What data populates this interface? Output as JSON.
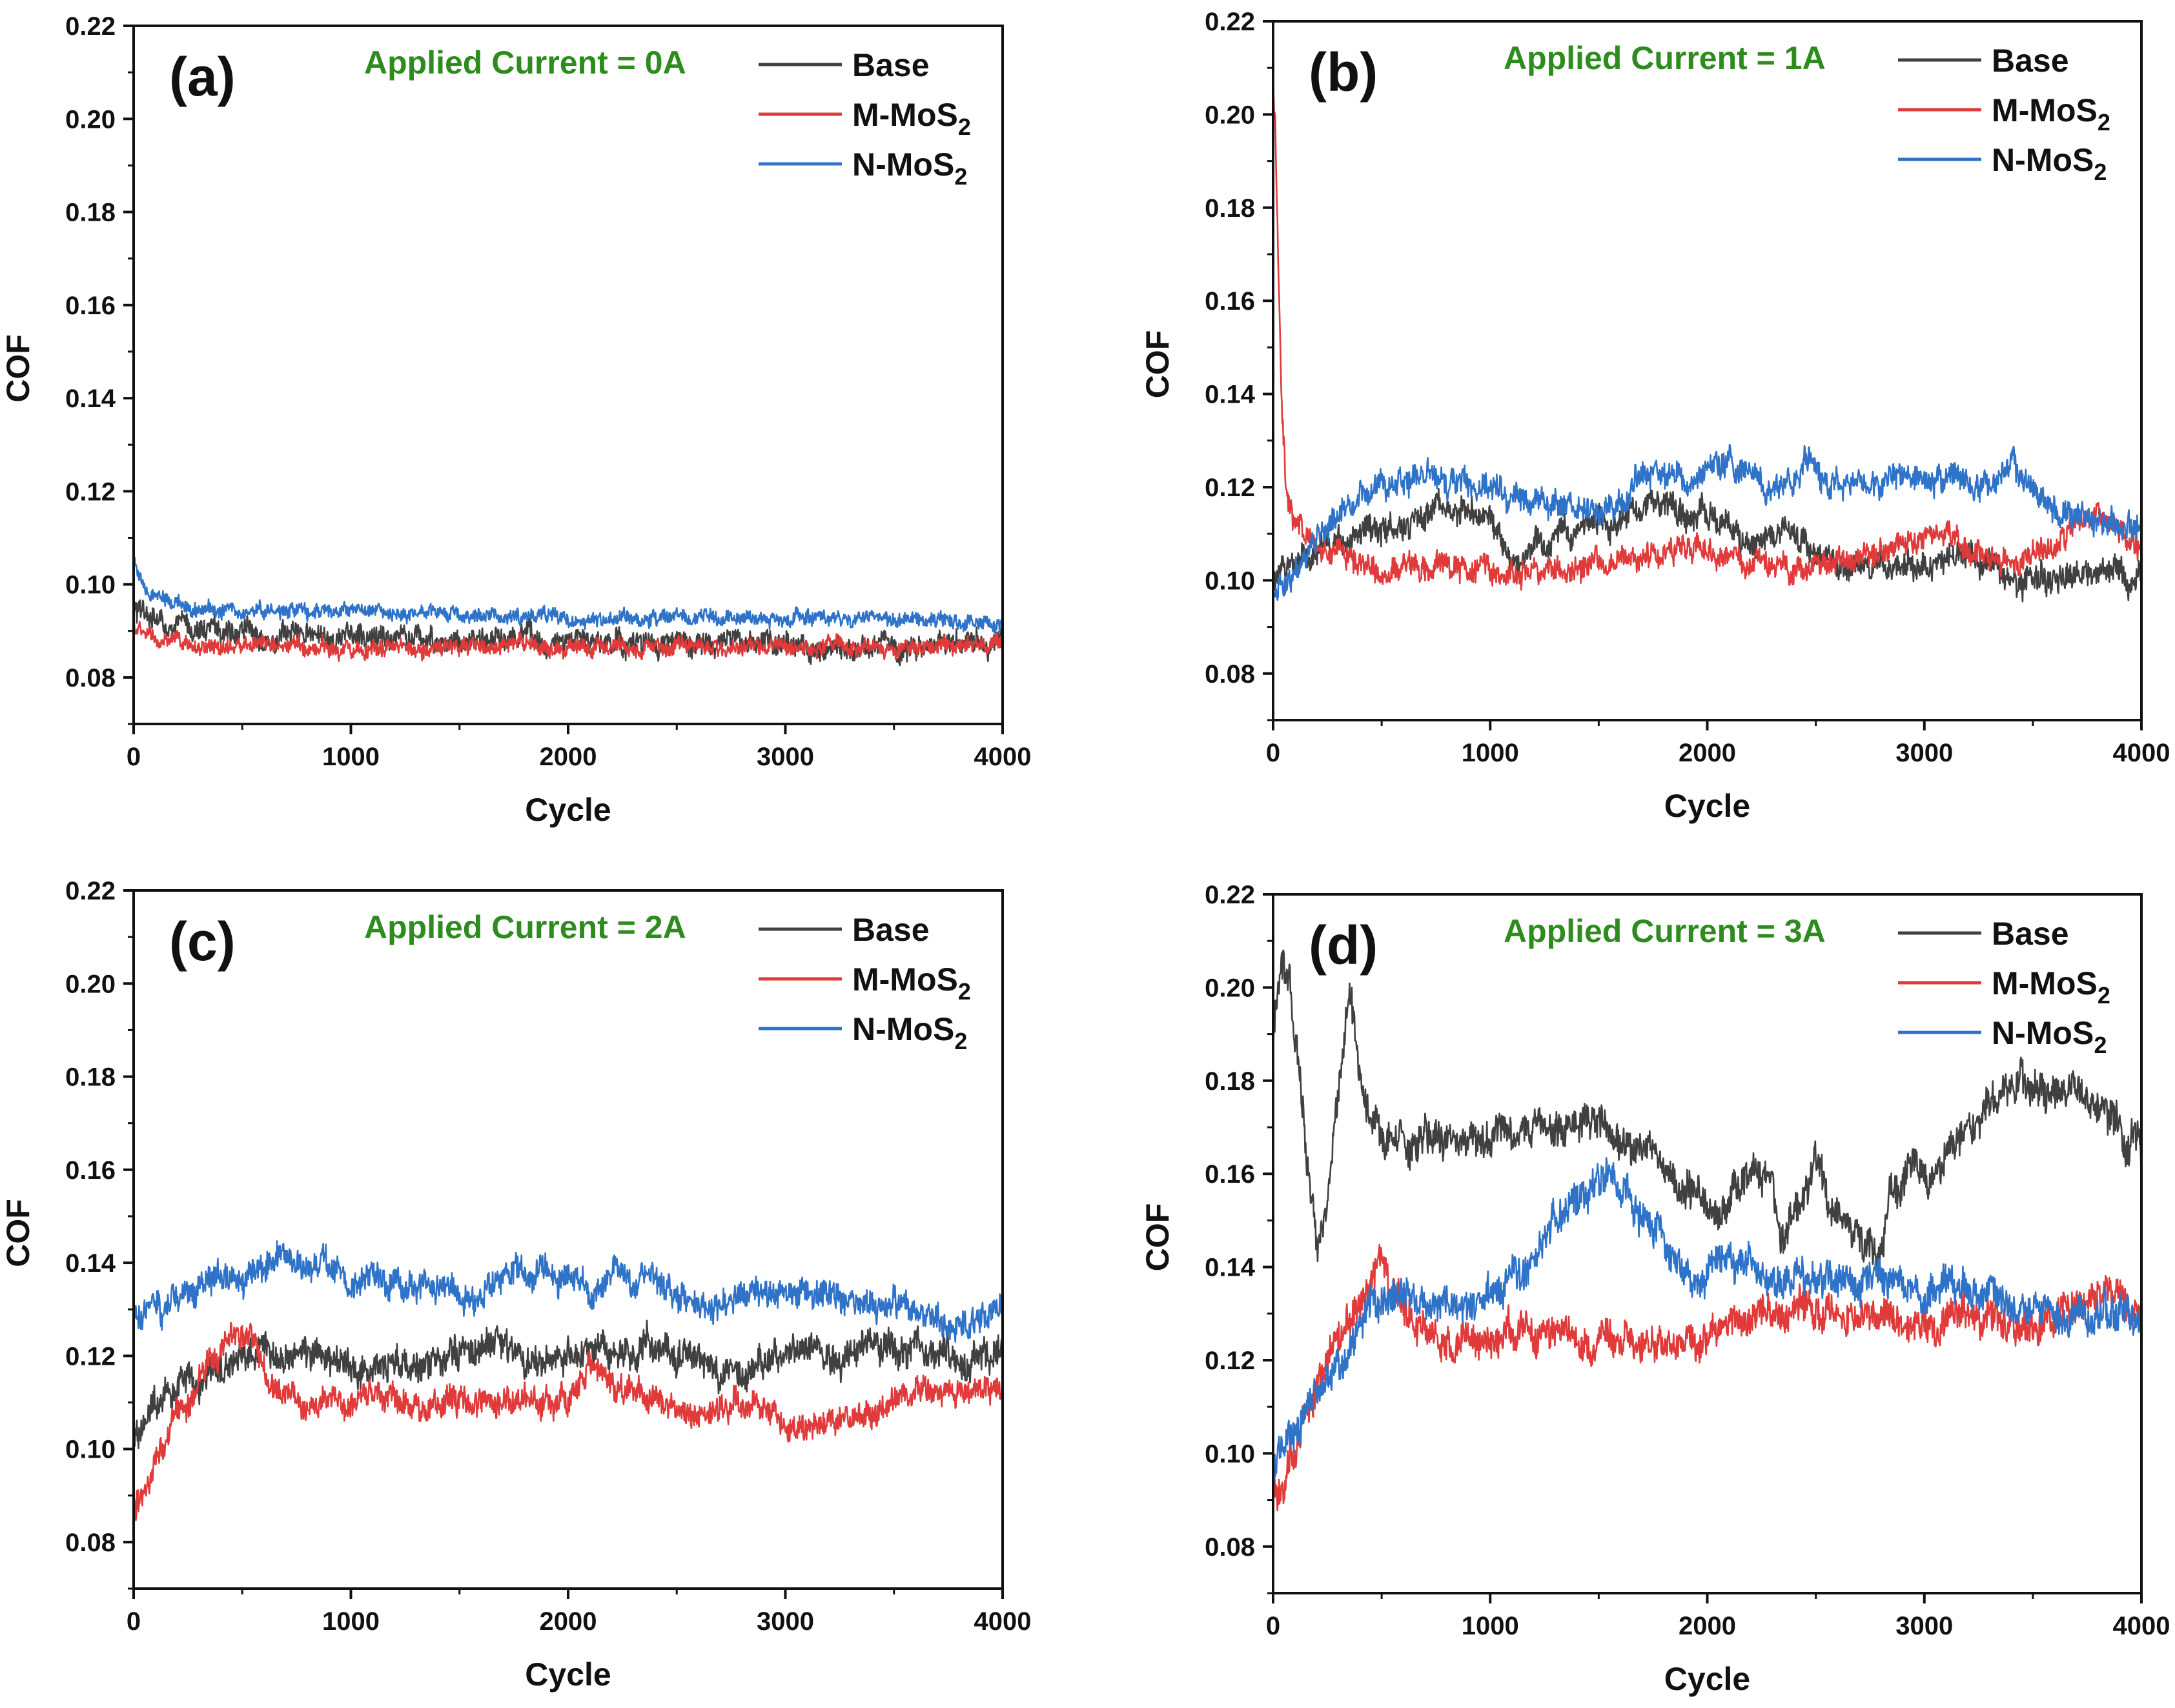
{
  "chart_data": [
    {
      "type": "line",
      "panel_label": "(a)",
      "annotation": "Applied Current = 0A",
      "annotation_color": "#2e8b1e",
      "xlabel": "Cycle",
      "ylabel": "COF",
      "xlim": [
        0,
        4000
      ],
      "ylim": [
        0.07,
        0.22
      ],
      "xticks": [
        0,
        1000,
        2000,
        3000,
        4000
      ],
      "xtick_labels": [
        "0",
        "1000",
        "2000",
        "3000",
        "4000"
      ],
      "yticks": [
        0.08,
        0.1,
        0.12,
        0.14,
        0.16,
        0.18,
        0.2,
        0.22
      ],
      "ytick_labels": [
        "0.08",
        "0.10",
        "0.12",
        "0.14",
        "0.16",
        "0.18",
        "0.20",
        "0.22"
      ],
      "legend_position": "top-right",
      "series": [
        {
          "name": "Base",
          "label_main": "Base",
          "label_sub": "",
          "color": "#404040",
          "noise": 0.0025,
          "x": [
            0,
            50,
            150,
            400,
            800,
            1500,
            2000,
            2500,
            3000,
            3500,
            4000
          ],
          "values": [
            0.094,
            0.093,
            0.091,
            0.09,
            0.089,
            0.088,
            0.0875,
            0.087,
            0.087,
            0.087,
            0.087
          ]
        },
        {
          "name": "M-MoS2",
          "label_main": "M-MoS",
          "label_sub": "2",
          "color": "#e03a3a",
          "noise": 0.0018,
          "x": [
            0,
            50,
            150,
            400,
            800,
            1500,
            2000,
            2500,
            3000,
            3500,
            4000
          ],
          "values": [
            0.091,
            0.089,
            0.087,
            0.0865,
            0.0865,
            0.0865,
            0.0865,
            0.0865,
            0.0865,
            0.0865,
            0.087
          ]
        },
        {
          "name": "N-MoS2",
          "label_main": "N-MoS",
          "label_sub": "2",
          "color": "#2f73c9",
          "noise": 0.0016,
          "x": [
            0,
            20,
            60,
            150,
            400,
            1000,
            1500,
            2000,
            2500,
            3000,
            3500,
            3700,
            4000
          ],
          "values": [
            0.105,
            0.101,
            0.098,
            0.096,
            0.0945,
            0.094,
            0.0935,
            0.093,
            0.0925,
            0.093,
            0.093,
            0.092,
            0.0915
          ]
        }
      ]
    },
    {
      "type": "line",
      "panel_label": "(b)",
      "annotation": "Applied Current = 1A",
      "annotation_color": "#2e8b1e",
      "xlabel": "Cycle",
      "ylabel": "COF",
      "xlim": [
        0,
        4000
      ],
      "ylim": [
        0.07,
        0.22
      ],
      "xticks": [
        0,
        1000,
        2000,
        3000,
        4000
      ],
      "xtick_labels": [
        "0",
        "1000",
        "2000",
        "3000",
        "4000"
      ],
      "yticks": [
        0.08,
        0.1,
        0.12,
        0.14,
        0.16,
        0.18,
        0.2,
        0.22
      ],
      "ytick_labels": [
        "0.08",
        "0.10",
        "0.12",
        "0.14",
        "0.16",
        "0.18",
        "0.20",
        "0.22"
      ],
      "legend_position": "top-right",
      "series": [
        {
          "name": "Base",
          "label_main": "Base",
          "label_sub": "",
          "color": "#404040",
          "noise": 0.003,
          "x": [
            0,
            100,
            300,
            600,
            800,
            1000,
            1100,
            1300,
            1600,
            1800,
            2000,
            2200,
            2400,
            2600,
            2800,
            3000,
            3200,
            3400,
            3600,
            3800,
            4000
          ],
          "values": [
            0.1,
            0.105,
            0.108,
            0.113,
            0.117,
            0.113,
            0.104,
            0.111,
            0.113,
            0.118,
            0.113,
            0.109,
            0.111,
            0.104,
            0.103,
            0.103,
            0.106,
            0.1,
            0.1,
            0.102,
            0.1
          ]
        },
        {
          "name": "M-MoS2",
          "label_main": "M-MoS",
          "label_sub": "2",
          "color": "#e03a3a",
          "noise": 0.0028,
          "x": [
            0,
            10,
            25,
            40,
            60,
            100,
            200,
            300,
            500,
            800,
            1200,
            1600,
            1900,
            2100,
            2400,
            2700,
            2900,
            3100,
            3200,
            3400,
            3600,
            3800,
            4000
          ],
          "values": [
            0.205,
            0.2,
            0.165,
            0.135,
            0.12,
            0.113,
            0.108,
            0.106,
            0.103,
            0.102,
            0.102,
            0.105,
            0.107,
            0.104,
            0.103,
            0.105,
            0.108,
            0.11,
            0.106,
            0.104,
            0.108,
            0.115,
            0.106
          ]
        },
        {
          "name": "N-MoS2",
          "label_main": "N-MoS",
          "label_sub": "2",
          "color": "#2f73c9",
          "noise": 0.003,
          "x": [
            0,
            80,
            200,
            350,
            500,
            700,
            900,
            1100,
            1300,
            1500,
            1700,
            1900,
            2100,
            2300,
            2450,
            2600,
            2800,
            3000,
            3200,
            3400,
            3600,
            3800,
            4000
          ],
          "values": [
            0.097,
            0.1,
            0.108,
            0.117,
            0.121,
            0.123,
            0.121,
            0.119,
            0.116,
            0.113,
            0.123,
            0.121,
            0.126,
            0.119,
            0.126,
            0.12,
            0.12,
            0.124,
            0.121,
            0.122,
            0.116,
            0.113,
            0.111
          ]
        }
      ]
    },
    {
      "type": "line",
      "panel_label": "(c)",
      "annotation": "Applied Current = 2A",
      "annotation_color": "#2e8b1e",
      "xlabel": "Cycle",
      "ylabel": "COF",
      "xlim": [
        0,
        4000
      ],
      "ylim": [
        0.07,
        0.22
      ],
      "xticks": [
        0,
        1000,
        2000,
        3000,
        4000
      ],
      "xtick_labels": [
        "0",
        "1000",
        "2000",
        "3000",
        "4000"
      ],
      "yticks": [
        0.08,
        0.1,
        0.12,
        0.14,
        0.16,
        0.18,
        0.2,
        0.22
      ],
      "ytick_labels": [
        "0.08",
        "0.10",
        "0.12",
        "0.14",
        "0.16",
        "0.18",
        "0.20",
        "0.22"
      ],
      "legend_position": "top-right",
      "series": [
        {
          "name": "Base",
          "label_main": "Base",
          "label_sub": "",
          "color": "#404040",
          "noise": 0.0035,
          "x": [
            0,
            100,
            300,
            500,
            800,
            1100,
            1400,
            1600,
            1900,
            2100,
            2400,
            2700,
            3000,
            3300,
            3600,
            3800,
            4000
          ],
          "values": [
            0.102,
            0.11,
            0.115,
            0.12,
            0.12,
            0.117,
            0.12,
            0.123,
            0.119,
            0.12,
            0.122,
            0.117,
            0.12,
            0.12,
            0.122,
            0.12,
            0.12
          ]
        },
        {
          "name": "M-MoS2",
          "label_main": "M-MoS",
          "label_sub": "2",
          "color": "#e03a3a",
          "noise": 0.003,
          "x": [
            0,
            50,
            150,
            300,
            450,
            550,
            650,
            800,
            1100,
            1400,
            1700,
            2000,
            2100,
            2300,
            2600,
            2800,
            3000,
            3200,
            3500,
            3800,
            4000
          ],
          "values": [
            0.087,
            0.092,
            0.102,
            0.115,
            0.125,
            0.125,
            0.113,
            0.11,
            0.111,
            0.109,
            0.11,
            0.111,
            0.119,
            0.111,
            0.108,
            0.11,
            0.105,
            0.106,
            0.111,
            0.112,
            0.113
          ]
        },
        {
          "name": "N-MoS2",
          "label_main": "N-MoS",
          "label_sub": "2",
          "color": "#2f73c9",
          "noise": 0.0032,
          "x": [
            0,
            150,
            300,
            500,
            700,
            1000,
            1300,
            1500,
            1800,
            2100,
            2400,
            2600,
            2900,
            3200,
            3500,
            3700,
            3850,
            4000
          ],
          "values": [
            0.129,
            0.129,
            0.137,
            0.138,
            0.141,
            0.137,
            0.136,
            0.133,
            0.138,
            0.134,
            0.137,
            0.131,
            0.134,
            0.132,
            0.132,
            0.128,
            0.127,
            0.132
          ]
        }
      ]
    },
    {
      "type": "line",
      "panel_label": "(d)",
      "annotation": "Applied Current = 3A",
      "annotation_color": "#2e8b1e",
      "xlabel": "Cycle",
      "ylabel": "COF",
      "xlim": [
        0,
        4000
      ],
      "ylim": [
        0.07,
        0.22
      ],
      "xticks": [
        0,
        1000,
        2000,
        3000,
        4000
      ],
      "xtick_labels": [
        "0",
        "1000",
        "2000",
        "3000",
        "4000"
      ],
      "yticks": [
        0.08,
        0.1,
        0.12,
        0.14,
        0.16,
        0.18,
        0.2,
        0.22
      ],
      "ytick_labels": [
        "0.08",
        "0.10",
        "0.12",
        "0.14",
        "0.16",
        "0.18",
        "0.20",
        "0.22"
      ],
      "legend_position": "top-right",
      "series": [
        {
          "name": "Base",
          "label_main": "Base",
          "label_sub": "",
          "color": "#404040",
          "noise": 0.004,
          "x": [
            0,
            40,
            80,
            150,
            200,
            250,
            300,
            350,
            400,
            450,
            500,
            600,
            800,
            1000,
            1200,
            1500,
            1700,
            1900,
            2100,
            2200,
            2300,
            2350,
            2500,
            2700,
            2800,
            2850,
            3000,
            3200,
            3400,
            3600,
            3800,
            4000
          ],
          "values": [
            0.19,
            0.205,
            0.2,
            0.165,
            0.145,
            0.15,
            0.175,
            0.2,
            0.18,
            0.175,
            0.17,
            0.167,
            0.169,
            0.168,
            0.17,
            0.172,
            0.165,
            0.157,
            0.153,
            0.158,
            0.158,
            0.148,
            0.16,
            0.148,
            0.142,
            0.158,
            0.16,
            0.17,
            0.178,
            0.178,
            0.175,
            0.165
          ]
        },
        {
          "name": "M-MoS2",
          "label_main": "M-MoS",
          "label_sub": "2",
          "color": "#e03a3a",
          "noise": 0.0038,
          "x": [
            0,
            40,
            80,
            200,
            300,
            400,
            480,
            550,
            650,
            800,
            1000,
            1300,
            1500,
            1700,
            1900,
            2100,
            2300,
            2500,
            2800,
            3000,
            3300,
            3600,
            3800,
            4000
          ],
          "values": [
            0.092,
            0.091,
            0.1,
            0.115,
            0.125,
            0.133,
            0.142,
            0.135,
            0.126,
            0.125,
            0.125,
            0.128,
            0.125,
            0.122,
            0.125,
            0.128,
            0.13,
            0.13,
            0.13,
            0.128,
            0.128,
            0.128,
            0.135,
            0.13
          ]
        },
        {
          "name": "N-MoS2",
          "label_main": "N-MoS",
          "label_sub": "2",
          "color": "#2f73c9",
          "noise": 0.0038,
          "x": [
            0,
            50,
            150,
            300,
            450,
            600,
            800,
            1000,
            1200,
            1400,
            1550,
            1700,
            1900,
            2100,
            2300,
            2500,
            2700,
            3000,
            3300,
            3600,
            3800,
            4000
          ],
          "values": [
            0.095,
            0.101,
            0.108,
            0.12,
            0.131,
            0.135,
            0.131,
            0.135,
            0.143,
            0.155,
            0.16,
            0.15,
            0.137,
            0.142,
            0.138,
            0.138,
            0.137,
            0.137,
            0.135,
            0.13,
            0.13,
            0.13
          ]
        }
      ]
    }
  ]
}
